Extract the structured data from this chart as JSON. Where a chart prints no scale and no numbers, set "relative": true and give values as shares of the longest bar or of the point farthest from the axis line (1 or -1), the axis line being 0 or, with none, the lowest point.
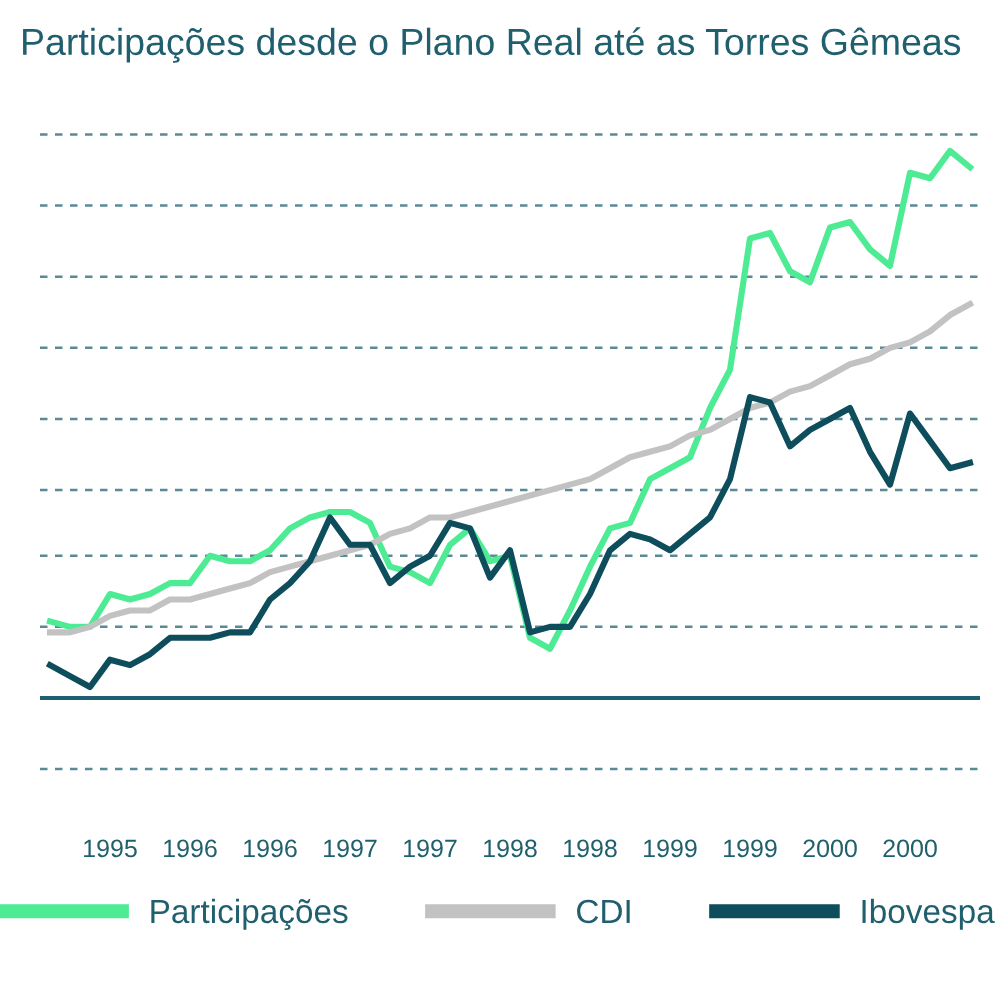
{
  "chart_data": {
    "type": "line",
    "title": "Participações desde o Plano Real até as Torres Gêmeas",
    "relative": true,
    "ref_lines": [
      {
        "axis": "y",
        "value": 0,
        "color": "#1f6070",
        "line_style": "solid"
      },
      {
        "axis": "y",
        "value": -0.13,
        "color": "#5a8a96",
        "line_style": "dashed"
      },
      {
        "axis": "y",
        "value": 0.13,
        "color": "#5a8a96",
        "line_style": "dashed"
      },
      {
        "axis": "y",
        "value": 0.26,
        "color": "#5a8a96",
        "line_style": "dashed"
      },
      {
        "axis": "y",
        "value": 0.38,
        "color": "#5a8a96",
        "line_style": "dashed"
      },
      {
        "axis": "y",
        "value": 0.51,
        "color": "#5a8a96",
        "line_style": "dashed"
      },
      {
        "axis": "y",
        "value": 0.64,
        "color": "#5a8a96",
        "line_style": "dashed"
      },
      {
        "axis": "y",
        "value": 0.77,
        "color": "#5a8a96",
        "line_style": "dashed"
      },
      {
        "axis": "y",
        "value": 0.9,
        "color": "#5a8a96",
        "line_style": "dashed"
      },
      {
        "axis": "y",
        "value": 1.03,
        "color": "#5a8a96",
        "line_style": "dashed"
      }
    ],
    "legend": "bottom",
    "line_style": "solid",
    "marker": "none",
    "categories": [
      null,
      null,
      null,
      "1995",
      null,
      null,
      null,
      "1996",
      null,
      null,
      null,
      "1996",
      null,
      null,
      null,
      "1997",
      null,
      null,
      null,
      "1997",
      null,
      null,
      null,
      "1998",
      null,
      null,
      null,
      "1998",
      null,
      null,
      null,
      "1999",
      null,
      null,
      null,
      "1999",
      null,
      null,
      null,
      "2000",
      null,
      null,
      null,
      "2000",
      null,
      null,
      null
    ],
    "series": [
      {
        "name": "Participações",
        "color": "#4deb94",
        "values": [
          0.14,
          0.13,
          0.13,
          0.19,
          0.18,
          0.19,
          0.21,
          0.21,
          0.26,
          0.25,
          0.25,
          0.27,
          0.31,
          0.33,
          0.34,
          0.34,
          0.32,
          0.24,
          0.23,
          0.21,
          0.28,
          0.31,
          0.25,
          0.26,
          0.11,
          0.09,
          0.16,
          0.24,
          0.31,
          0.32,
          0.4,
          0.42,
          0.44,
          0.53,
          0.6,
          0.84,
          0.85,
          0.78,
          0.76,
          0.86,
          0.87,
          0.82,
          0.79,
          0.96,
          0.95,
          1.0,
          0.97
        ]
      },
      {
        "name": "CDI",
        "color": "#c2c2c2",
        "values": [
          0.12,
          0.12,
          0.13,
          0.15,
          0.16,
          0.16,
          0.18,
          0.18,
          0.19,
          0.2,
          0.21,
          0.23,
          0.24,
          0.25,
          0.26,
          0.27,
          0.28,
          0.3,
          0.31,
          0.33,
          0.33,
          0.34,
          0.35,
          0.36,
          0.37,
          0.38,
          0.39,
          0.4,
          0.42,
          0.44,
          0.45,
          0.46,
          0.48,
          0.49,
          0.51,
          0.53,
          0.54,
          0.56,
          0.57,
          0.59,
          0.61,
          0.62,
          0.64,
          0.65,
          0.67,
          0.7,
          0.72
        ]
      },
      {
        "name": "Ibovespa",
        "color": "#0d4d5c",
        "values": [
          0.06,
          0.04,
          0.02,
          0.07,
          0.06,
          0.08,
          0.11,
          0.11,
          0.11,
          0.12,
          0.12,
          0.18,
          0.21,
          0.25,
          0.33,
          0.28,
          0.28,
          0.21,
          0.24,
          0.26,
          0.32,
          0.31,
          0.22,
          0.27,
          0.12,
          0.13,
          0.13,
          0.19,
          0.27,
          0.3,
          0.29,
          0.27,
          0.3,
          0.33,
          0.4,
          0.55,
          0.54,
          0.46,
          0.49,
          0.51,
          0.53,
          0.45,
          0.39,
          0.52,
          0.47,
          0.42,
          0.43
        ]
      }
    ]
  }
}
